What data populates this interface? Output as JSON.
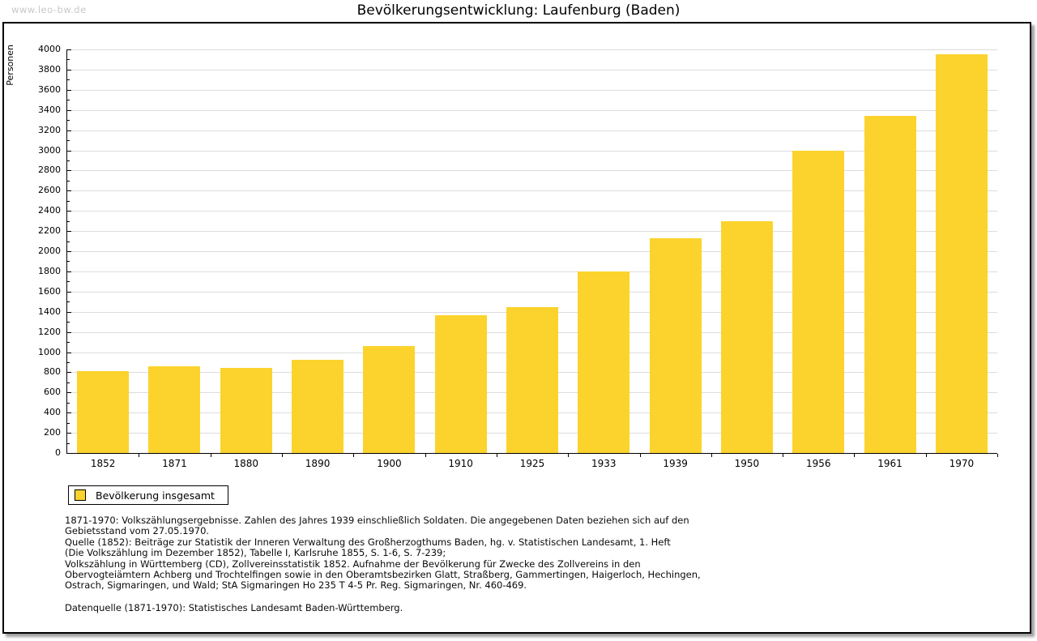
{
  "watermark": "www.leo-bw.de",
  "header": {
    "title": "Bevölkerungsentwicklung: Laufenburg (Baden)"
  },
  "chart_data": {
    "type": "bar",
    "title": "Bevölkerungsentwicklung: Laufenburg (Baden)",
    "xlabel": "",
    "ylabel": "Personen",
    "categories": [
      "1852",
      "1871",
      "1880",
      "1890",
      "1900",
      "1910",
      "1925",
      "1933",
      "1939",
      "1950",
      "1956",
      "1961",
      "1970"
    ],
    "values": [
      810,
      860,
      845,
      925,
      1060,
      1365,
      1450,
      1800,
      2130,
      2300,
      3000,
      3345,
      3950
    ],
    "series_name": "Bevölkerung insgesamt",
    "ylim": [
      0,
      4000
    ],
    "ytick_step": 200,
    "ytick_minor_step": 100,
    "grid": true,
    "legend_position": "bottom-left",
    "bar_color": "#FCD32D"
  },
  "legend": {
    "label": "Bevölkerung insgesamt",
    "swatch_color": "#FCD32D"
  },
  "footnotes": [
    "1871-1970: Volkszählungsergebnisse. Zahlen des Jahres 1939 einschließlich Soldaten. Die angegebenen Daten beziehen sich auf den",
    "Gebietsstand vom 27.05.1970.",
    "Quelle (1852): Beiträge zur Statistik der Inneren Verwaltung des Großherzogthums Baden, hg. v. Statistischen Landesamt, 1. Heft",
    "(Die Volkszählung im Dezember 1852), Tabelle I, Karlsruhe 1855, S. 1-6, S. 7-239;",
    "Volkszählung in Württemberg (CD), Zollvereinsstatistik 1852. Aufnahme der Bevölkerung für Zwecke des Zollvereins in den",
    "Obervogteiämtern Achberg und Trochtelfingen sowie in den Oberamtsbezirken Glatt, Straßberg, Gammertingen, Haigerloch, Hechingen,",
    "Ostrach, Sigmaringen, und Wald; StA Sigmaringen Ho 235 T 4-5 Pr. Reg. Sigmaringen, Nr. 460-469."
  ],
  "datasource": "Datenquelle (1871-1970): Statistisches Landesamt Baden-Württemberg.",
  "colors": {
    "bar": "#FCD32D",
    "gridline": "#DCDCDC",
    "frame_border": "#000000",
    "watermark": "#C8C8C8"
  }
}
